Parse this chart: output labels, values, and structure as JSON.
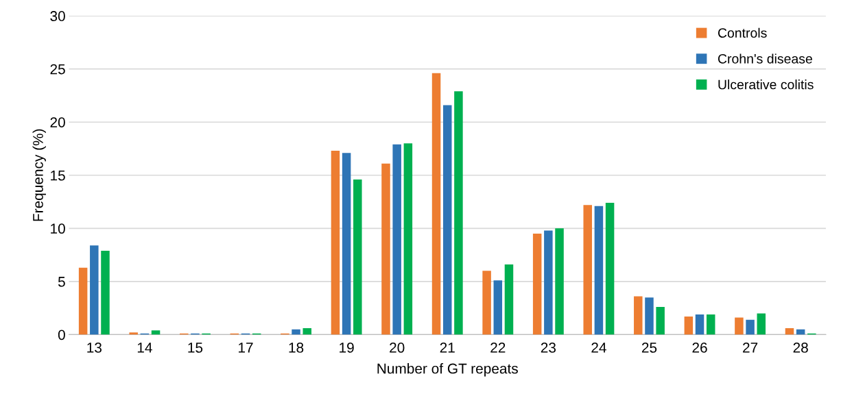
{
  "chart_data": {
    "type": "bar",
    "xlabel": "Number of GT repeats",
    "ylabel": "Frequency (%)",
    "categories": [
      "13",
      "14",
      "15",
      "17",
      "18",
      "19",
      "20",
      "21",
      "22",
      "23",
      "24",
      "25",
      "26",
      "27",
      "28"
    ],
    "series": [
      {
        "name": "Controls",
        "color": "#ed7d31",
        "values": [
          6.3,
          0.2,
          0.1,
          0.1,
          0.1,
          17.3,
          16.1,
          24.6,
          6.0,
          9.5,
          12.2,
          3.6,
          1.7,
          1.6,
          0.6
        ]
      },
      {
        "name": "Crohn's disease",
        "color": "#2e75b6",
        "values": [
          8.4,
          0.1,
          0.1,
          0.1,
          0.5,
          17.1,
          17.9,
          21.6,
          5.1,
          9.8,
          12.1,
          3.5,
          1.9,
          1.4,
          0.5
        ]
      },
      {
        "name": "Ulcerative colitis",
        "color": "#00b050",
        "values": [
          7.9,
          0.4,
          0.1,
          0.1,
          0.6,
          14.6,
          18.0,
          22.9,
          6.6,
          10.0,
          12.4,
          2.6,
          1.9,
          2.0,
          0.1
        ]
      }
    ],
    "ylim": [
      0,
      30
    ],
    "yticks": [
      0,
      5,
      10,
      15,
      20,
      25,
      30
    ],
    "grid": "y",
    "legend": "top right"
  }
}
